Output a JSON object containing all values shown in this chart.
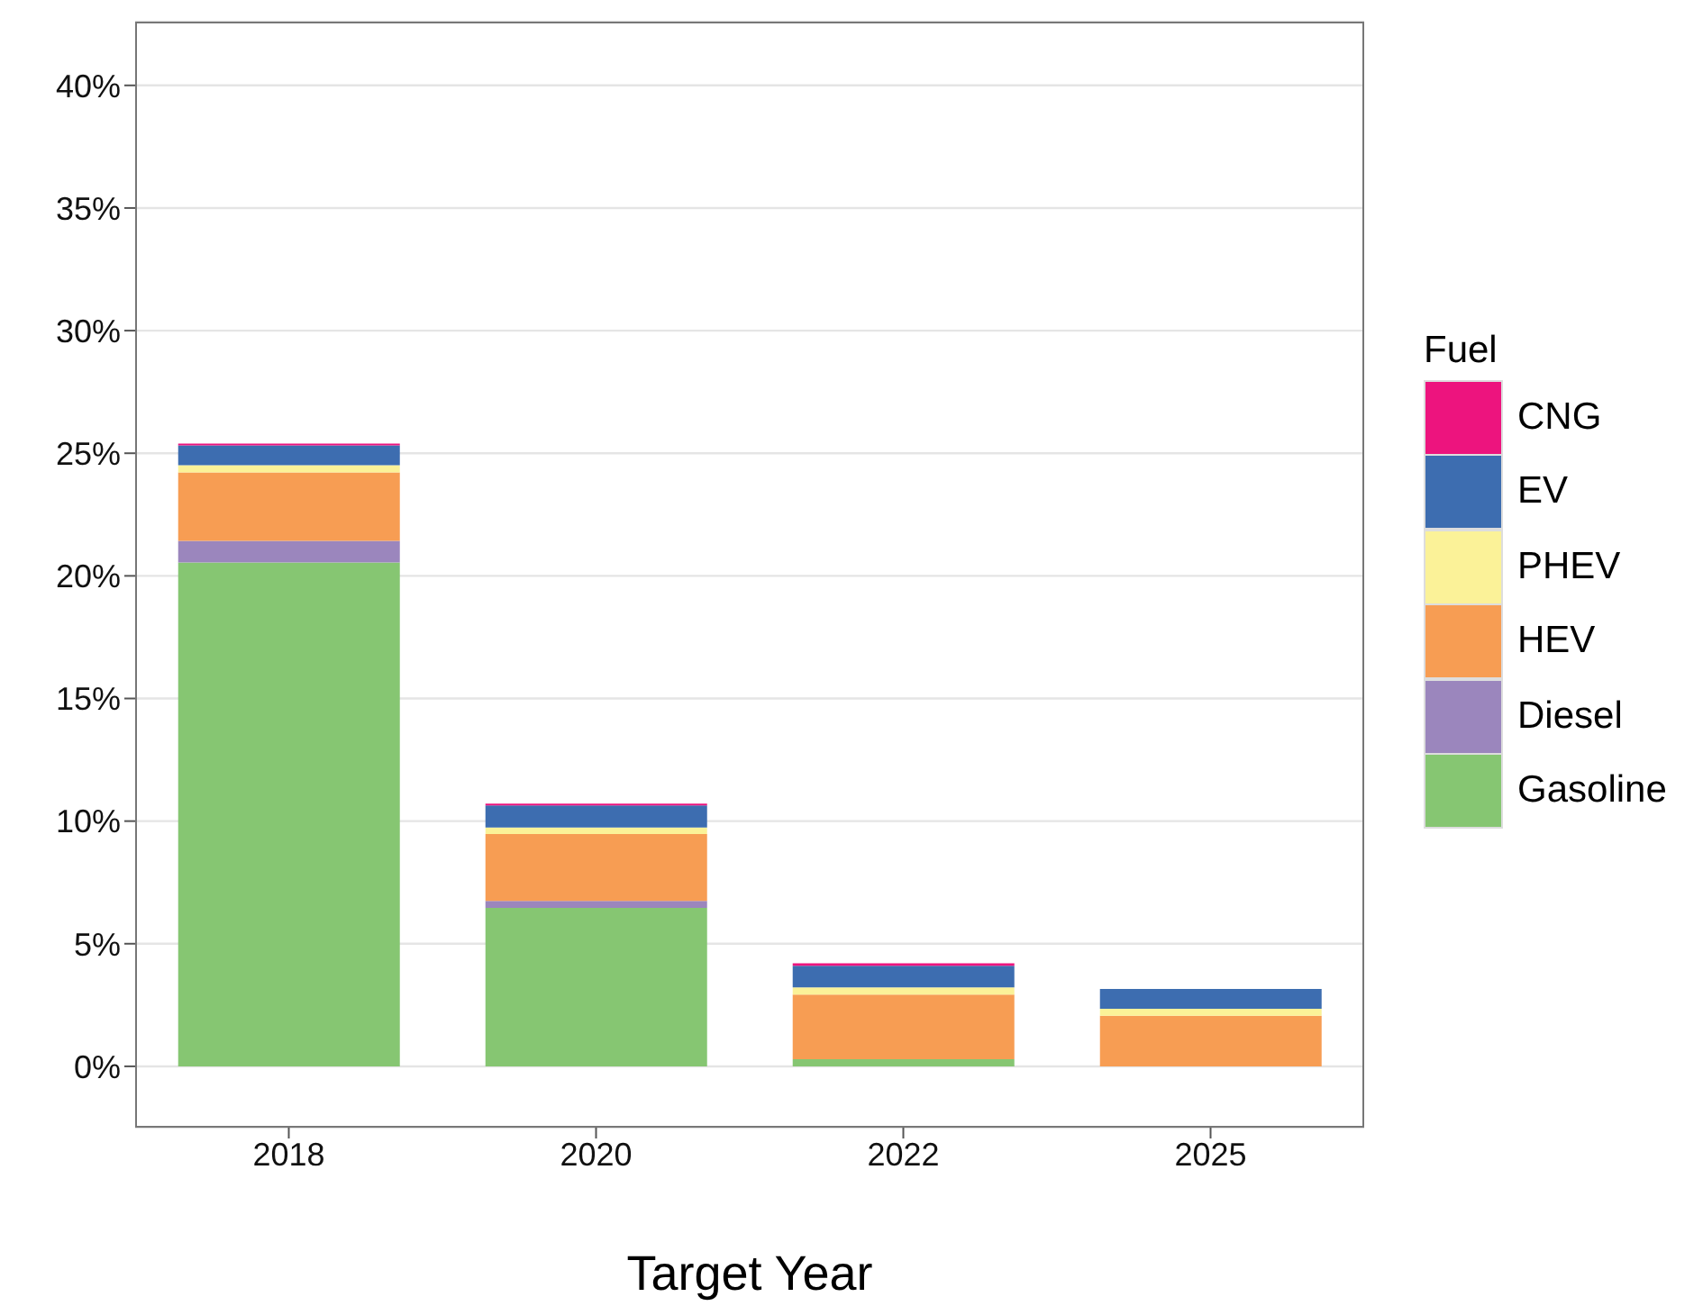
{
  "chart_data": {
    "type": "bar",
    "xlabel": "Target Year",
    "legend_title": "Fuel",
    "categories": [
      "2018",
      "2020",
      "2022",
      "2025"
    ],
    "stacked": true,
    "series": [
      {
        "name": "Gasoline",
        "color": "#86c672",
        "values": [
          20.55,
          6.46,
          0.29,
          0
        ]
      },
      {
        "name": "Diesel",
        "color": "#9b86bd",
        "values": [
          0.88,
          0.29,
          0,
          0
        ]
      },
      {
        "name": "HEV",
        "color": "#f79d53",
        "values": [
          2.79,
          2.72,
          2.64,
          2.06
        ]
      },
      {
        "name": "PHEV",
        "color": "#fbf298",
        "values": [
          0.29,
          0.27,
          0.29,
          0.29
        ]
      },
      {
        "name": "EV",
        "color": "#3d6db0",
        "values": [
          0.81,
          0.9,
          0.88,
          0.81
        ]
      },
      {
        "name": "CNG",
        "color": "#ed147e",
        "values": [
          0.07,
          0.07,
          0.1,
          0
        ]
      }
    ],
    "ylim": [
      -2.5,
      42.6
    ],
    "yticks": [
      {
        "value": 0,
        "label": "0%"
      },
      {
        "value": 5,
        "label": "5%"
      },
      {
        "value": 10,
        "label": "10%"
      },
      {
        "value": 15,
        "label": "15%"
      },
      {
        "value": 20,
        "label": "20%"
      },
      {
        "value": 25,
        "label": "25%"
      },
      {
        "value": 30,
        "label": "30%"
      },
      {
        "value": 35,
        "label": "35%"
      },
      {
        "value": 40,
        "label": "40%"
      }
    ],
    "grid": "y",
    "legend": "right"
  }
}
